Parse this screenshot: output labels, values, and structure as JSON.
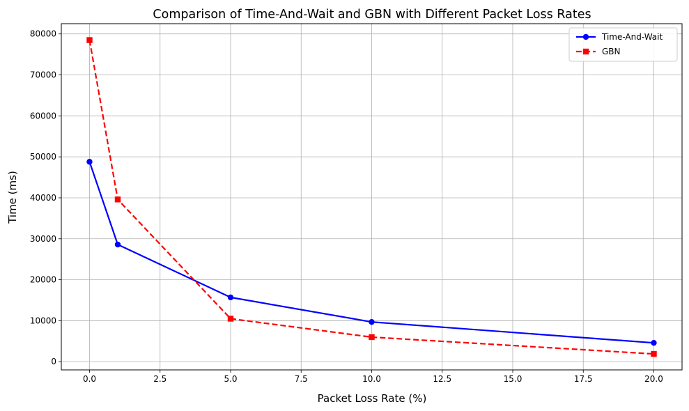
{
  "chart_data": {
    "type": "line",
    "title": "Comparison of Time-And-Wait and GBN with Different Packet Loss Rates",
    "xlabel": "Packet Loss Rate (%)",
    "ylabel": "Time (ms)",
    "xlim": [
      -1,
      21
    ],
    "ylim": [
      -2000,
      82500
    ],
    "x_ticks": [
      0.0,
      2.5,
      5.0,
      7.5,
      10.0,
      12.5,
      15.0,
      17.5,
      20.0
    ],
    "x_tick_labels": [
      "0.0",
      "2.5",
      "5.0",
      "7.5",
      "10.0",
      "12.5",
      "15.0",
      "17.5",
      "20.0"
    ],
    "y_ticks": [
      0,
      10000,
      20000,
      30000,
      40000,
      50000,
      60000,
      70000,
      80000
    ],
    "y_tick_labels": [
      "0",
      "10000",
      "20000",
      "30000",
      "40000",
      "50000",
      "60000",
      "70000",
      "80000"
    ],
    "grid": true,
    "legend": "top-right",
    "x": [
      0,
      1,
      5,
      10,
      20
    ],
    "series": [
      {
        "name": "Time-And-Wait",
        "values": [
          48800,
          28600,
          15700,
          9700,
          4600
        ],
        "color": "#0000ff",
        "line_style": "solid",
        "marker": "circle"
      },
      {
        "name": "GBN",
        "values": [
          78500,
          39600,
          10500,
          6000,
          1900
        ],
        "color": "#ff0000",
        "line_style": "dashed",
        "marker": "square"
      }
    ]
  }
}
